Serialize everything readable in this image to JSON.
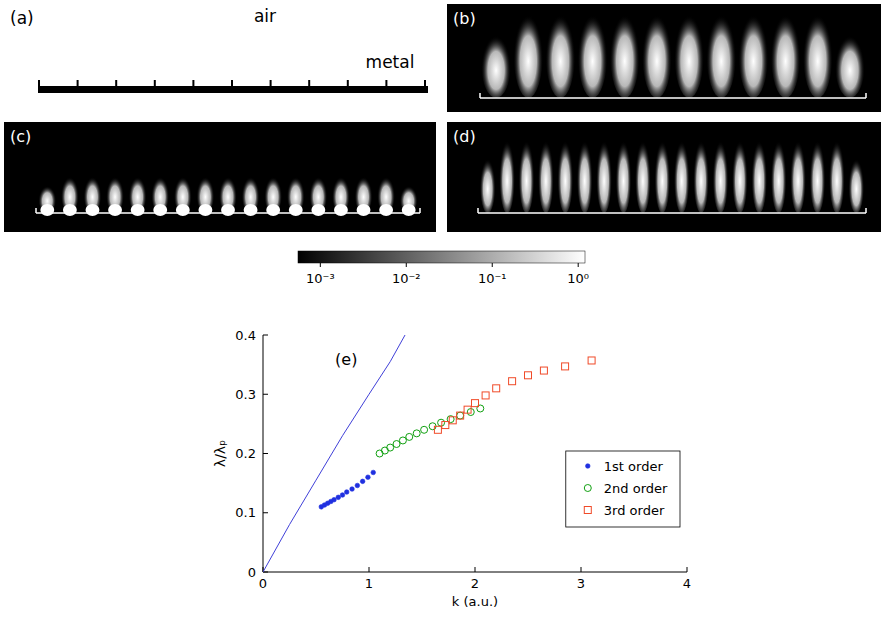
{
  "panels": [
    {
      "label": "(a)",
      "texts": [
        "air",
        "metal"
      ]
    },
    {
      "label": "(b)"
    },
    {
      "label": "(c)"
    },
    {
      "label": "(d)"
    }
  ],
  "colorbar": {
    "range": [
      0.00055,
      1.2
    ],
    "log": true,
    "ticks": [
      {
        "value": 0.001,
        "label": "10⁻³"
      },
      {
        "value": 0.01,
        "label": "10⁻²"
      },
      {
        "value": 0.1,
        "label": "10⁻¹"
      },
      {
        "value": 1,
        "label": "10⁰"
      }
    ]
  },
  "chart_data": {
    "type": "scatter",
    "title": "(e)",
    "x_label": "k (a.u.)",
    "y_label": "λ/λₚ",
    "xlim": [
      0,
      4
    ],
    "ylim": [
      0,
      0.4
    ],
    "xticks": [
      0,
      1,
      2,
      3,
      4
    ],
    "yticks": [
      0,
      0.1,
      0.2,
      0.3,
      0.4
    ],
    "legend": "lower right",
    "series": [
      {
        "type": "line",
        "color": "#4040d8",
        "line_style": "solid",
        "x": [
          0,
          0.25,
          0.5,
          0.75,
          1.0,
          1.2,
          1.34
        ],
        "values": [
          0,
          0.08,
          0.155,
          0.23,
          0.3,
          0.355,
          0.4
        ]
      },
      {
        "name": "1st order",
        "type": "scatter",
        "marker": "point",
        "color": "#2030e0",
        "x": [
          0.55,
          0.58,
          0.61,
          0.64,
          0.67,
          0.71,
          0.75,
          0.79,
          0.84,
          0.89,
          0.94,
          0.99,
          1.04
        ],
        "values": [
          0.11,
          0.113,
          0.116,
          0.119,
          0.122,
          0.126,
          0.13,
          0.135,
          0.14,
          0.146,
          0.153,
          0.16,
          0.168
        ]
      },
      {
        "name": "2nd order",
        "type": "scatter",
        "marker": "circle",
        "color": "#10a010",
        "x": [
          1.1,
          1.15,
          1.2,
          1.26,
          1.32,
          1.38,
          1.45,
          1.52,
          1.6,
          1.68,
          1.77,
          1.86,
          1.96,
          2.05
        ],
        "values": [
          0.2,
          0.205,
          0.21,
          0.216,
          0.222,
          0.228,
          0.234,
          0.24,
          0.246,
          0.252,
          0.258,
          0.264,
          0.27,
          0.276
        ]
      },
      {
        "name": "3rd order",
        "type": "scatter",
        "marker": "square",
        "color": "#f04a28",
        "x": [
          1.65,
          1.72,
          1.79,
          1.86,
          1.93,
          2.0,
          2.1,
          2.2,
          2.35,
          2.5,
          2.65,
          2.85,
          3.1
        ],
        "values": [
          0.24,
          0.248,
          0.256,
          0.264,
          0.274,
          0.285,
          0.298,
          0.31,
          0.322,
          0.332,
          0.34,
          0.347,
          0.357
        ]
      }
    ]
  }
}
